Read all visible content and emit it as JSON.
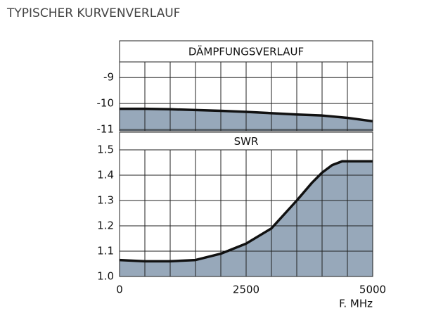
{
  "header": {
    "title": "TYPISCHER KURVENVERLAUF"
  },
  "chart_data": [
    {
      "type": "area",
      "title": "DÄMPFUNGSVERLAUF",
      "x": [
        0,
        500,
        1000,
        1500,
        2000,
        2500,
        3000,
        3500,
        4000,
        4500,
        5000
      ],
      "values": [
        -10.2,
        -10.2,
        -10.22,
        -10.25,
        -10.28,
        -10.32,
        -10.37,
        -10.42,
        -10.46,
        -10.55,
        -10.68
      ],
      "xlim": [
        0,
        5000
      ],
      "ylim": [
        -11.05,
        -8.4
      ],
      "yticks": [
        -9,
        -10,
        -11
      ],
      "xgrid": [
        500,
        1000,
        1500,
        2000,
        2500,
        3000,
        3500,
        4000,
        4500
      ],
      "color": "#97a8ba",
      "line_color": "#111111",
      "grid": true
    },
    {
      "type": "area",
      "title": "SWR",
      "x": [
        0,
        500,
        1000,
        1500,
        2000,
        2500,
        3000,
        3500,
        3800,
        4000,
        4200,
        4400,
        4700,
        5000
      ],
      "values": [
        1.065,
        1.06,
        1.06,
        1.065,
        1.09,
        1.13,
        1.19,
        1.3,
        1.37,
        1.41,
        1.44,
        1.455,
        1.455,
        1.455
      ],
      "xlim": [
        0,
        5000
      ],
      "ylim": [
        1.0,
        1.5
      ],
      "yticks": [
        {
          "value": 1.0,
          "label": "1.0"
        },
        1.1,
        1.2,
        1.3,
        1.4,
        1.5
      ],
      "xticks": [
        0,
        2500,
        5000
      ],
      "xgrid": [
        500,
        1000,
        1500,
        2000,
        2500,
        3000,
        3500,
        4000,
        4500
      ],
      "xlabel": "F. MHz",
      "color": "#97a8ba",
      "line_color": "#111111",
      "grid": true
    }
  ]
}
